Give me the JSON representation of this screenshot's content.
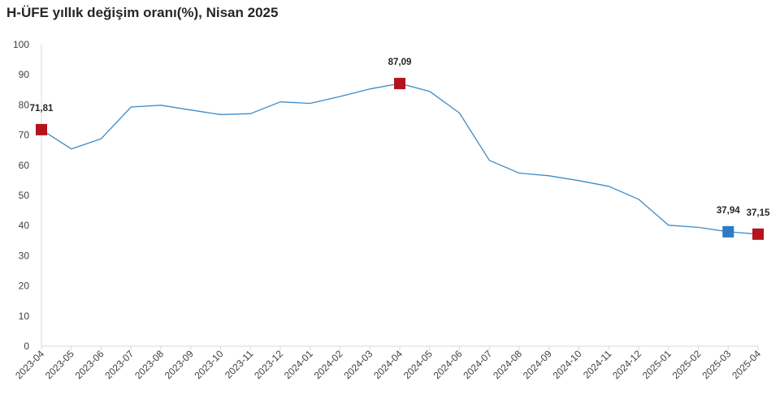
{
  "chart_data": {
    "type": "line",
    "title": "H-ÜFE yıllık değişim oranı(%), Nisan 2025",
    "xlabel": "",
    "ylabel": "",
    "ylim": [
      0,
      100
    ],
    "yticks": [
      0,
      10,
      20,
      30,
      40,
      50,
      60,
      70,
      80,
      90,
      100
    ],
    "grid": false,
    "legend": "none",
    "categories": [
      "2023-04",
      "2023-05",
      "2023-06",
      "2023-07",
      "2023-08",
      "2023-09",
      "2023-10",
      "2023-11",
      "2023-12",
      "2024-01",
      "2024-02",
      "2024-03",
      "2024-04",
      "2024-05",
      "2024-06",
      "2024-07",
      "2024-08",
      "2024-09",
      "2024-10",
      "2024-11",
      "2024-12",
      "2025-01",
      "2025-02",
      "2025-03",
      "2025-04"
    ],
    "series": [
      {
        "values": [
          71.81,
          65.4,
          68.8,
          79.3,
          79.9,
          78.3,
          76.8,
          77.1,
          81.0,
          80.5,
          82.8,
          85.3,
          87.09,
          84.5,
          77.3,
          61.6,
          57.4,
          56.5,
          54.9,
          53.0,
          48.7,
          40.1,
          39.4,
          37.94,
          37.15
        ],
        "color": "#3d8bc9"
      }
    ],
    "highlights": [
      {
        "index": 0,
        "label": "71,81",
        "color": "#b3141d"
      },
      {
        "index": 12,
        "label": "87,09",
        "color": "#b3141d"
      },
      {
        "index": 23,
        "label": "37,94",
        "color": "#2e7cbf"
      },
      {
        "index": 24,
        "label": "37,15",
        "color": "#b3141d"
      }
    ],
    "axis_color": "#d9d9d9"
  }
}
